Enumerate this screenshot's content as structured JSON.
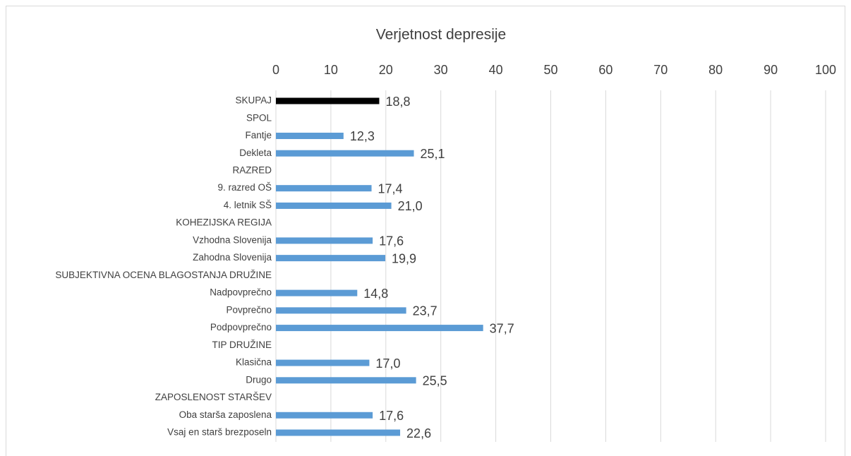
{
  "chart_data": {
    "type": "barh",
    "title": "Verjetnost depresije",
    "categories": [
      "SKUPAJ",
      "SPOL",
      "Fantje",
      "Dekleta",
      "RAZRED",
      "9. razred OŠ",
      "4. letnik SŠ",
      "KOHEZIJSKA REGIJA",
      "Vzhodna Slovenija",
      "Zahodna Slovenija",
      "SUBJEKTIVNA OCENA BLAGOSTANJA DRUŽINE",
      "Nadpovprečno",
      "Povprečno",
      "Podpovprečno",
      "TIP DRUŽINE",
      "Klasična",
      "Drugo",
      "ZAPOSLENOST STARŠEV",
      "Oba starša zaposlena",
      "Vsaj en starš brezposeln"
    ],
    "values": [
      18.8,
      null,
      12.3,
      25.1,
      null,
      17.4,
      21.0,
      null,
      17.6,
      19.9,
      null,
      14.8,
      23.7,
      37.7,
      null,
      17.0,
      25.5,
      null,
      17.6,
      22.6
    ],
    "value_labels": [
      "18,8",
      null,
      "12,3",
      "25,1",
      null,
      "17,4",
      "21,0",
      null,
      "17,6",
      "19,9",
      null,
      "14,8",
      "23,7",
      "37,7",
      null,
      "17,0",
      "25,5",
      null,
      "17,6",
      "22,6"
    ],
    "colors": [
      "#000000",
      null,
      "#5b9bd5",
      "#5b9bd5",
      null,
      "#5b9bd5",
      "#5b9bd5",
      null,
      "#5b9bd5",
      "#5b9bd5",
      null,
      "#5b9bd5",
      "#5b9bd5",
      "#5b9bd5",
      null,
      "#5b9bd5",
      "#5b9bd5",
      null,
      "#5b9bd5",
      "#5b9bd5"
    ],
    "xlim": [
      0,
      100
    ],
    "xticks": [
      0,
      10,
      20,
      30,
      40,
      50,
      60,
      70,
      80,
      90,
      100
    ],
    "grid": true
  }
}
